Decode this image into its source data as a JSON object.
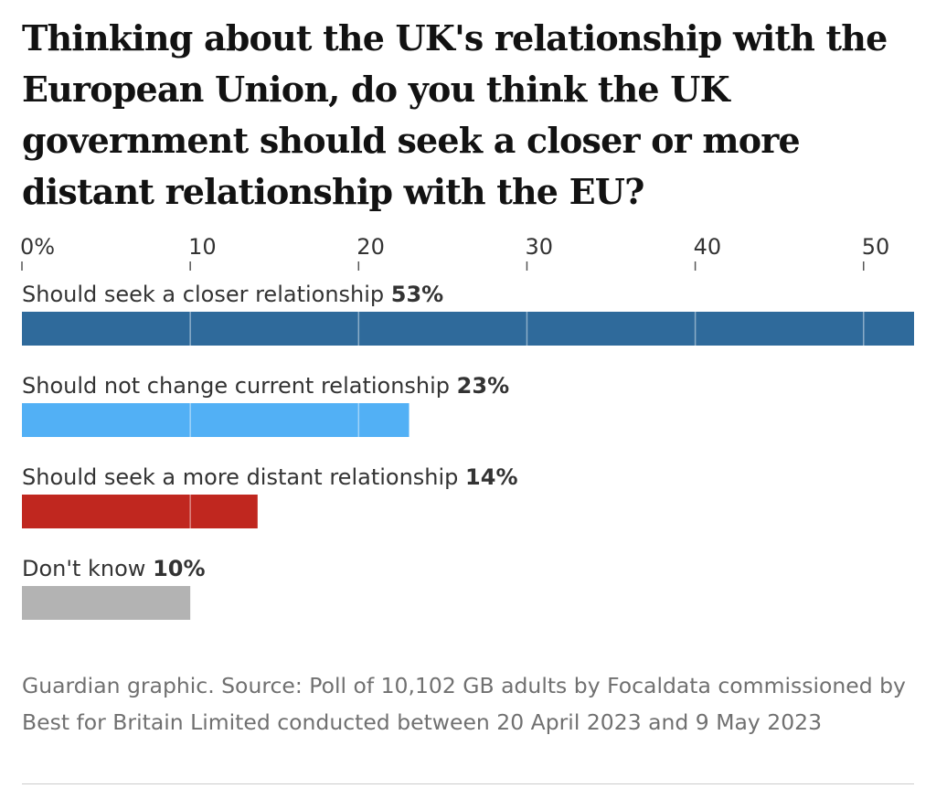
{
  "chart_data": {
    "type": "bar",
    "orientation": "horizontal",
    "title": "Thinking about the UK's relationship with the European Union, do you think the UK government should seek a closer or more distant relationship with the EU?",
    "categories": [
      "Should seek a closer relationship",
      "Should not change current relationship",
      "Should seek a more distant relationship",
      "Don't know"
    ],
    "values": [
      53,
      23,
      14,
      10
    ],
    "value_labels": [
      "53%",
      "23%",
      "14%",
      "10%"
    ],
    "colors": [
      "#2f6a9b",
      "#52b0f5",
      "#c0271f",
      "#b3b3b3"
    ],
    "xticks": [
      0,
      10,
      20,
      30,
      40,
      50
    ],
    "xtick_labels": [
      "0%",
      "10",
      "20",
      "30",
      "40",
      "50"
    ],
    "xlim": [
      0,
      53
    ],
    "xlabel": "",
    "ylabel": "",
    "grid": true
  },
  "footer": "Guardian graphic. Source: Poll of 10,102 GB adults by Focaldata commissioned by Best for Britain Limited conducted between 20 April 2023 and 9 May 2023"
}
